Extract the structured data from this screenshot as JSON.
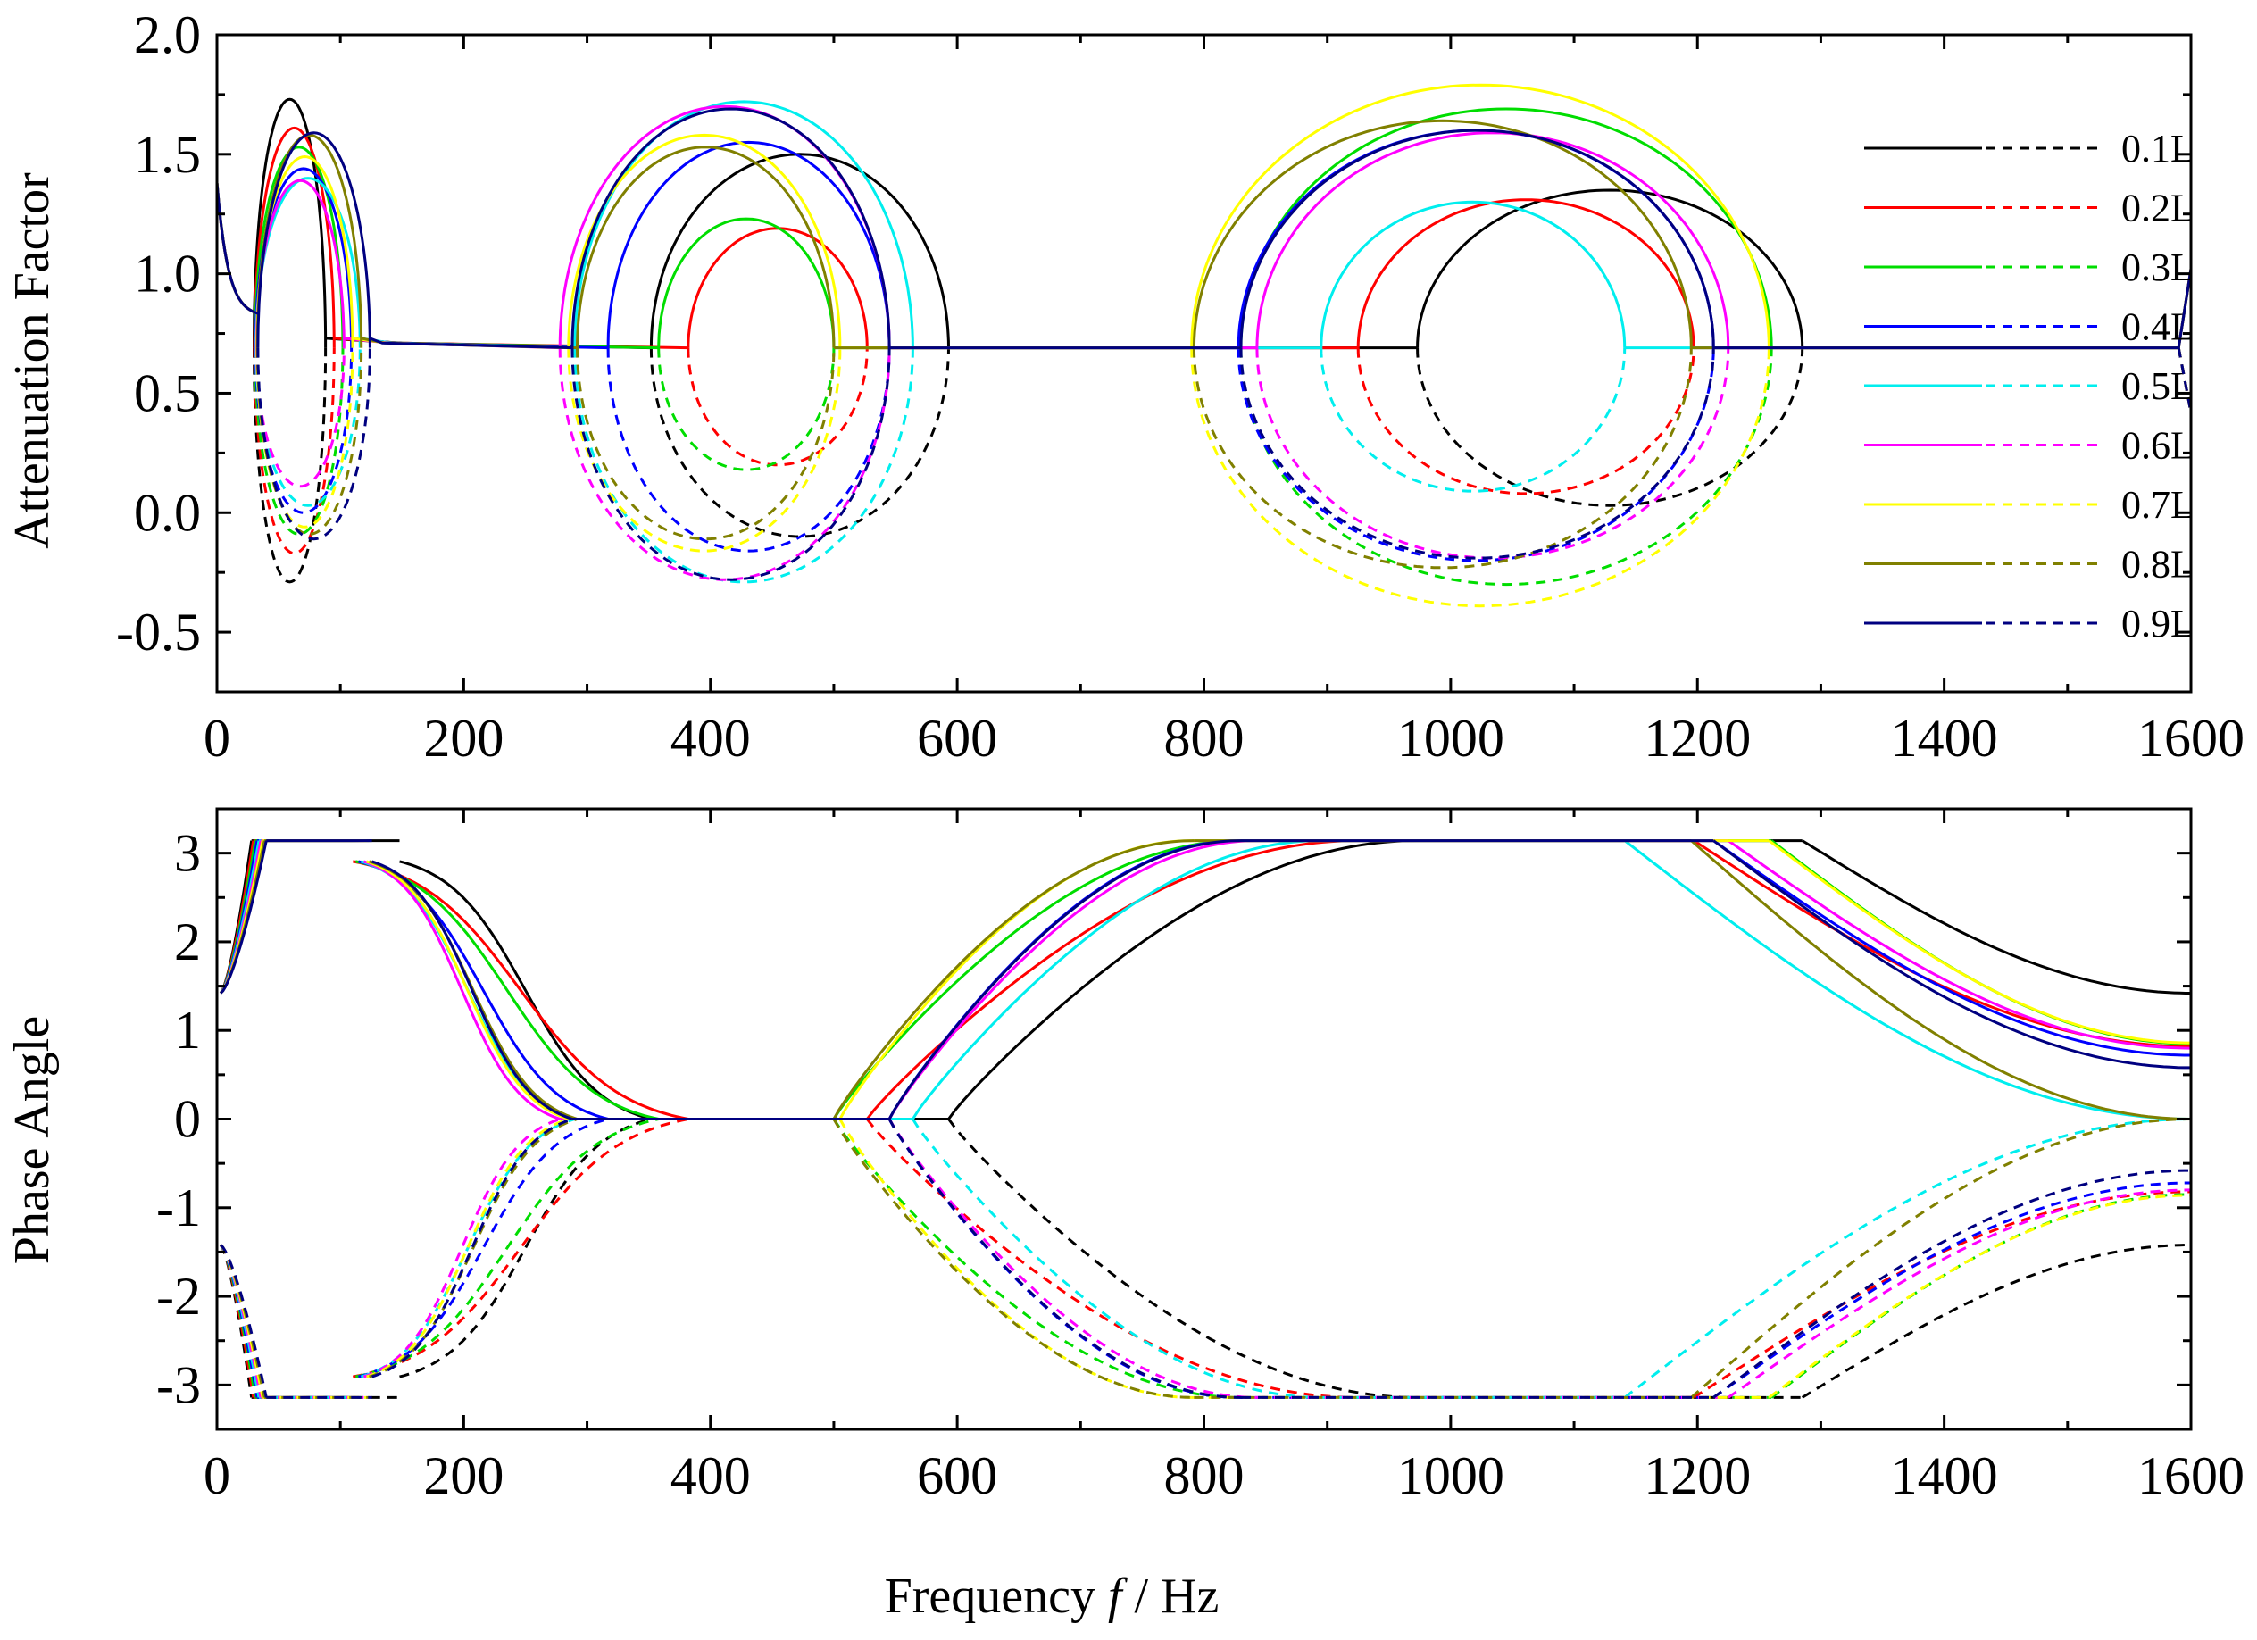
{
  "xlabel_parts": {
    "a": "Frequency ",
    "b": "f",
    "c": " / Hz"
  },
  "series_colors": [
    "#000000",
    "#ff0000",
    "#00dd00",
    "#0000ff",
    "#00eeee",
    "#ff00ff",
    "#ffff00",
    "#808000",
    "#000080"
  ],
  "chart_data": [
    {
      "type": "line",
      "title": "",
      "xlabel": "Frequency f / Hz",
      "ylabel": "Attenuation Factor",
      "xlim": [
        0,
        1600
      ],
      "ylim": [
        -0.75,
        2.0
      ],
      "xticks": [
        0,
        200,
        400,
        600,
        800,
        1000,
        1200,
        1400,
        1600
      ],
      "xtick_labels": [
        "0",
        "200",
        "400",
        "600",
        "800",
        "1000",
        "1200",
        "1400",
        "1600"
      ],
      "yticks": [
        -0.5,
        0.0,
        0.5,
        1.0,
        1.5,
        2.0
      ],
      "ytick_labels": [
        "-0.5",
        "0.0",
        "0.5",
        "1.0",
        "1.5",
        "2.0"
      ],
      "grid": false,
      "legend_position": "right",
      "legend_style": "solid and dashed line pair per series",
      "legend": [
        "0.1L",
        "0.2L",
        "0.3L",
        "0.4L",
        "0.5L",
        "0.6L",
        "0.7L",
        "0.8L",
        "0.9L"
      ],
      "baseline": 0.69,
      "series": [
        {
          "name": "0.1L",
          "peak_low": 1.73,
          "trough_low": -0.29,
          "lobe2": [
            352,
            593,
            1.5,
            -0.1
          ],
          "lobe3": [
            973,
            1285,
            1.35,
            0.03
          ]
        },
        {
          "name": "0.2L",
          "peak_low": 1.61,
          "trough_low": -0.17,
          "lobe2": [
            382,
            527,
            1.19,
            0.2
          ],
          "lobe3": [
            925,
            1197,
            1.31,
            0.08
          ]
        },
        {
          "name": "0.3L",
          "peak_low": 1.53,
          "trough_low": -0.09,
          "lobe2": [
            358,
            500,
            1.23,
            0.18
          ],
          "lobe3": [
            830,
            1260,
            1.69,
            -0.3
          ]
        },
        {
          "name": "0.4L",
          "peak_low": 1.44,
          "trough_low": 0.0,
          "lobe2": [
            317,
            545,
            1.55,
            -0.16
          ],
          "lobe3": [
            828,
            1213,
            1.6,
            -0.2
          ]
        },
        {
          "name": "0.5L",
          "peak_low": 1.4,
          "trough_low": 0.03,
          "lobe2": [
            290,
            564,
            1.72,
            -0.29
          ],
          "lobe3": [
            895,
            1141,
            1.3,
            0.09
          ]
        },
        {
          "name": "0.6L",
          "peak_low": 1.39,
          "trough_low": 0.11,
          "lobe2": [
            278,
            545,
            1.7,
            -0.28
          ],
          "lobe3": [
            843,
            1225,
            1.59,
            -0.19
          ]
        },
        {
          "name": "0.7L",
          "peak_low": 1.49,
          "trough_low": -0.06,
          "lobe2": [
            285,
            505,
            1.58,
            -0.16
          ],
          "lobe3": [
            790,
            1258,
            1.79,
            -0.39
          ]
        },
        {
          "name": "0.8L",
          "peak_low": 1.58,
          "trough_low": -0.09,
          "lobe2": [
            292,
            500,
            1.53,
            -0.11
          ],
          "lobe3": [
            792,
            1195,
            1.64,
            -0.23
          ]
        },
        {
          "name": "0.9L",
          "peak_low": 1.59,
          "trough_low": -0.11,
          "lobe2": [
            288,
            545,
            1.69,
            -0.28
          ],
          "lobe3": [
            830,
            1213,
            1.6,
            -0.19
          ]
        }
      ]
    },
    {
      "type": "line",
      "title": "",
      "xlabel": "Frequency f / Hz",
      "ylabel": "Phase Angle",
      "xlim": [
        0,
        1600
      ],
      "ylim": [
        -3.5,
        3.5
      ],
      "xticks": [
        0,
        200,
        400,
        600,
        800,
        1000,
        1200,
        1400,
        1600
      ],
      "xtick_labels": [
        "0",
        "200",
        "400",
        "600",
        "800",
        "1000",
        "1200",
        "1400",
        "1600"
      ],
      "yticks": [
        -3,
        -2,
        -1,
        0,
        1,
        2,
        3
      ],
      "ytick_labels": [
        "-3",
        "-2",
        "-1",
        "0",
        "1",
        "2",
        "3"
      ],
      "grid": false,
      "saturation_level": 3.14159,
      "series": [
        {
          "name": "0.1L",
          "value_at_1600": 1.42
        },
        {
          "name": "0.2L",
          "value_at_1600": 0.82
        },
        {
          "name": "0.3L",
          "value_at_1600": 0.85
        },
        {
          "name": "0.4L",
          "value_at_1600": 0.72
        },
        {
          "name": "0.5L",
          "value_at_1600": 0.0
        },
        {
          "name": "0.6L",
          "value_at_1600": 0.8
        },
        {
          "name": "0.7L",
          "value_at_1600": 0.86
        },
        {
          "name": "0.8L",
          "value_at_1600": 0.0
        },
        {
          "name": "0.9L",
          "value_at_1600": 0.58
        }
      ]
    }
  ]
}
